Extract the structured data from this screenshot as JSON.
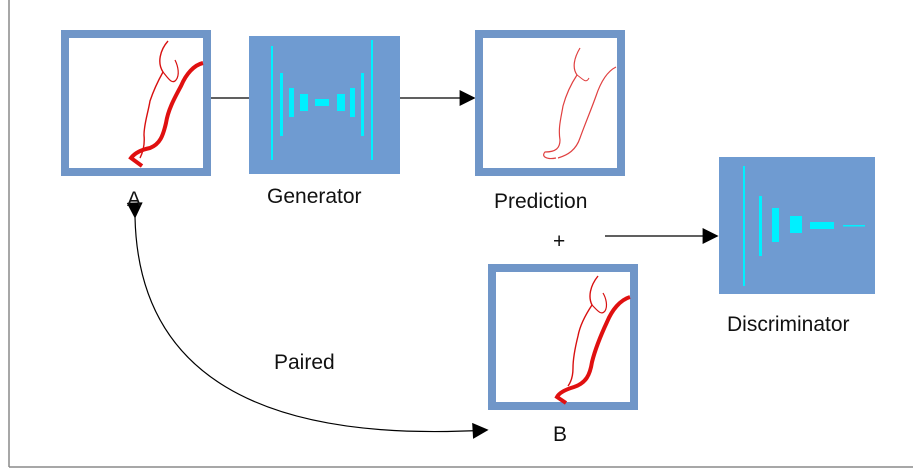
{
  "diagram": {
    "labels": {
      "a": "A",
      "b": "B",
      "generator": "Generator",
      "prediction": "Prediction",
      "plus": "+",
      "discriminator": "Discriminator",
      "paired": "Paired"
    },
    "colors": {
      "frame": "#7096c8",
      "frame_fill": "#ffffff",
      "network_fill": "#6f9bd1",
      "network_layer": "#00f0ff",
      "sketch": "#e01010",
      "arrow": "#000000",
      "border": "#8a8a8a"
    }
  }
}
